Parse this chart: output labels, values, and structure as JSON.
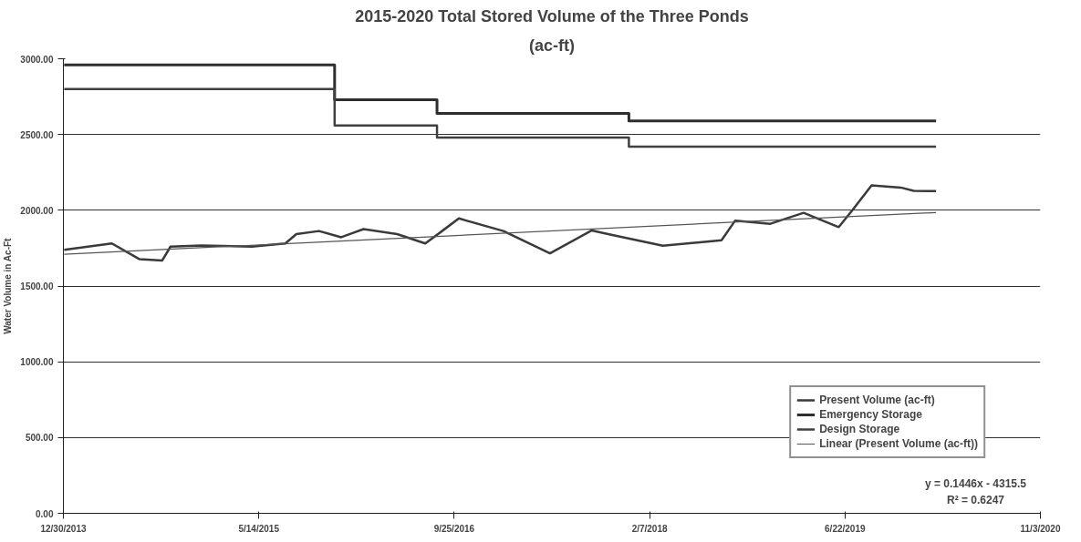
{
  "chart_data": {
    "type": "line",
    "title": "2015-2020 Total Stored Volume of the Three Ponds",
    "subtitle": "(ac-ft)",
    "ylabel": "Water Volume in Ac-Ft",
    "xlim": [
      "2013-12-30",
      "2020-11-03"
    ],
    "xticks": [
      {
        "value": "2013-12-30",
        "label": "12/30/2013"
      },
      {
        "value": "2015-05-14",
        "label": "5/14/2015"
      },
      {
        "value": "2016-09-25",
        "label": "9/25/2016"
      },
      {
        "value": "2018-02-07",
        "label": "2/7/2018"
      },
      {
        "value": "2019-06-22",
        "label": "6/22/2019"
      },
      {
        "value": "2020-11-03",
        "label": "11/3/2020"
      }
    ],
    "ylim": [
      0,
      3000
    ],
    "yticks": [
      {
        "value": 0,
        "label": "0.00"
      },
      {
        "value": 500,
        "label": "500.00"
      },
      {
        "value": 1000,
        "label": "1000.00"
      },
      {
        "value": 1500,
        "label": "1500.00"
      },
      {
        "value": 2000,
        "label": "2000.00"
      },
      {
        "value": 2500,
        "label": "2500.00"
      },
      {
        "value": 3000,
        "label": "3000.00"
      }
    ],
    "grid": "y",
    "legend": "bottom right",
    "marker": "none",
    "line_style": "solid",
    "series": [
      {
        "name": "Present Volume (ac-ft)",
        "color": "#3a3a3a",
        "x": [
          "2014-01-01",
          "2014-05-03",
          "2014-07-13",
          "2014-09-09",
          "2014-09-30",
          "2014-12-18",
          "2015-04-26",
          "2015-07-21",
          "2015-08-18",
          "2015-10-15",
          "2015-12-11",
          "2016-02-06",
          "2016-05-02",
          "2016-07-13",
          "2016-08-25",
          "2016-10-07",
          "2017-01-29",
          "2017-05-28",
          "2017-09-12",
          "2017-11-01",
          "2018-03-13",
          "2018-08-10",
          "2018-09-14",
          "2018-12-13",
          "2019-03-08",
          "2019-06-06",
          "2019-07-10",
          "2019-08-29",
          "2019-11-12",
          "2019-12-15",
          "2020-02-10"
        ],
        "values": [
          1739,
          1781,
          1677,
          1669,
          1760,
          1768,
          1760,
          1781,
          1843,
          1863,
          1822,
          1876,
          1843,
          1781,
          1863,
          1946,
          1863,
          1716,
          1867,
          1838,
          1766,
          1802,
          1932,
          1911,
          1983,
          1889,
          1997,
          2164,
          2150,
          2128,
          2127
        ]
      },
      {
        "name": "Emergency Storage",
        "type": "step",
        "color": "#2e2e2e",
        "x": [
          "2014-01-01",
          "2015-11-24",
          "2016-08-12",
          "2017-12-16",
          "2020-02-10"
        ],
        "values": [
          2960,
          2730,
          2640,
          2590,
          2590
        ]
      },
      {
        "name": "Design Storage",
        "type": "step",
        "color": "#404040",
        "x": [
          "2014-01-01",
          "2015-11-24",
          "2016-08-12",
          "2017-12-16",
          "2020-02-10"
        ],
        "values": [
          2800,
          2560,
          2480,
          2420,
          2420
        ]
      },
      {
        "name": "Linear (Present Volume (ac-ft))",
        "color": "#555555",
        "x": [
          "2014-01-01",
          "2020-02-10"
        ],
        "values": [
          1710,
          1985
        ]
      }
    ],
    "annotations": [
      "y = 0.1446x - 4315.5",
      "R² = 0.6247"
    ]
  }
}
